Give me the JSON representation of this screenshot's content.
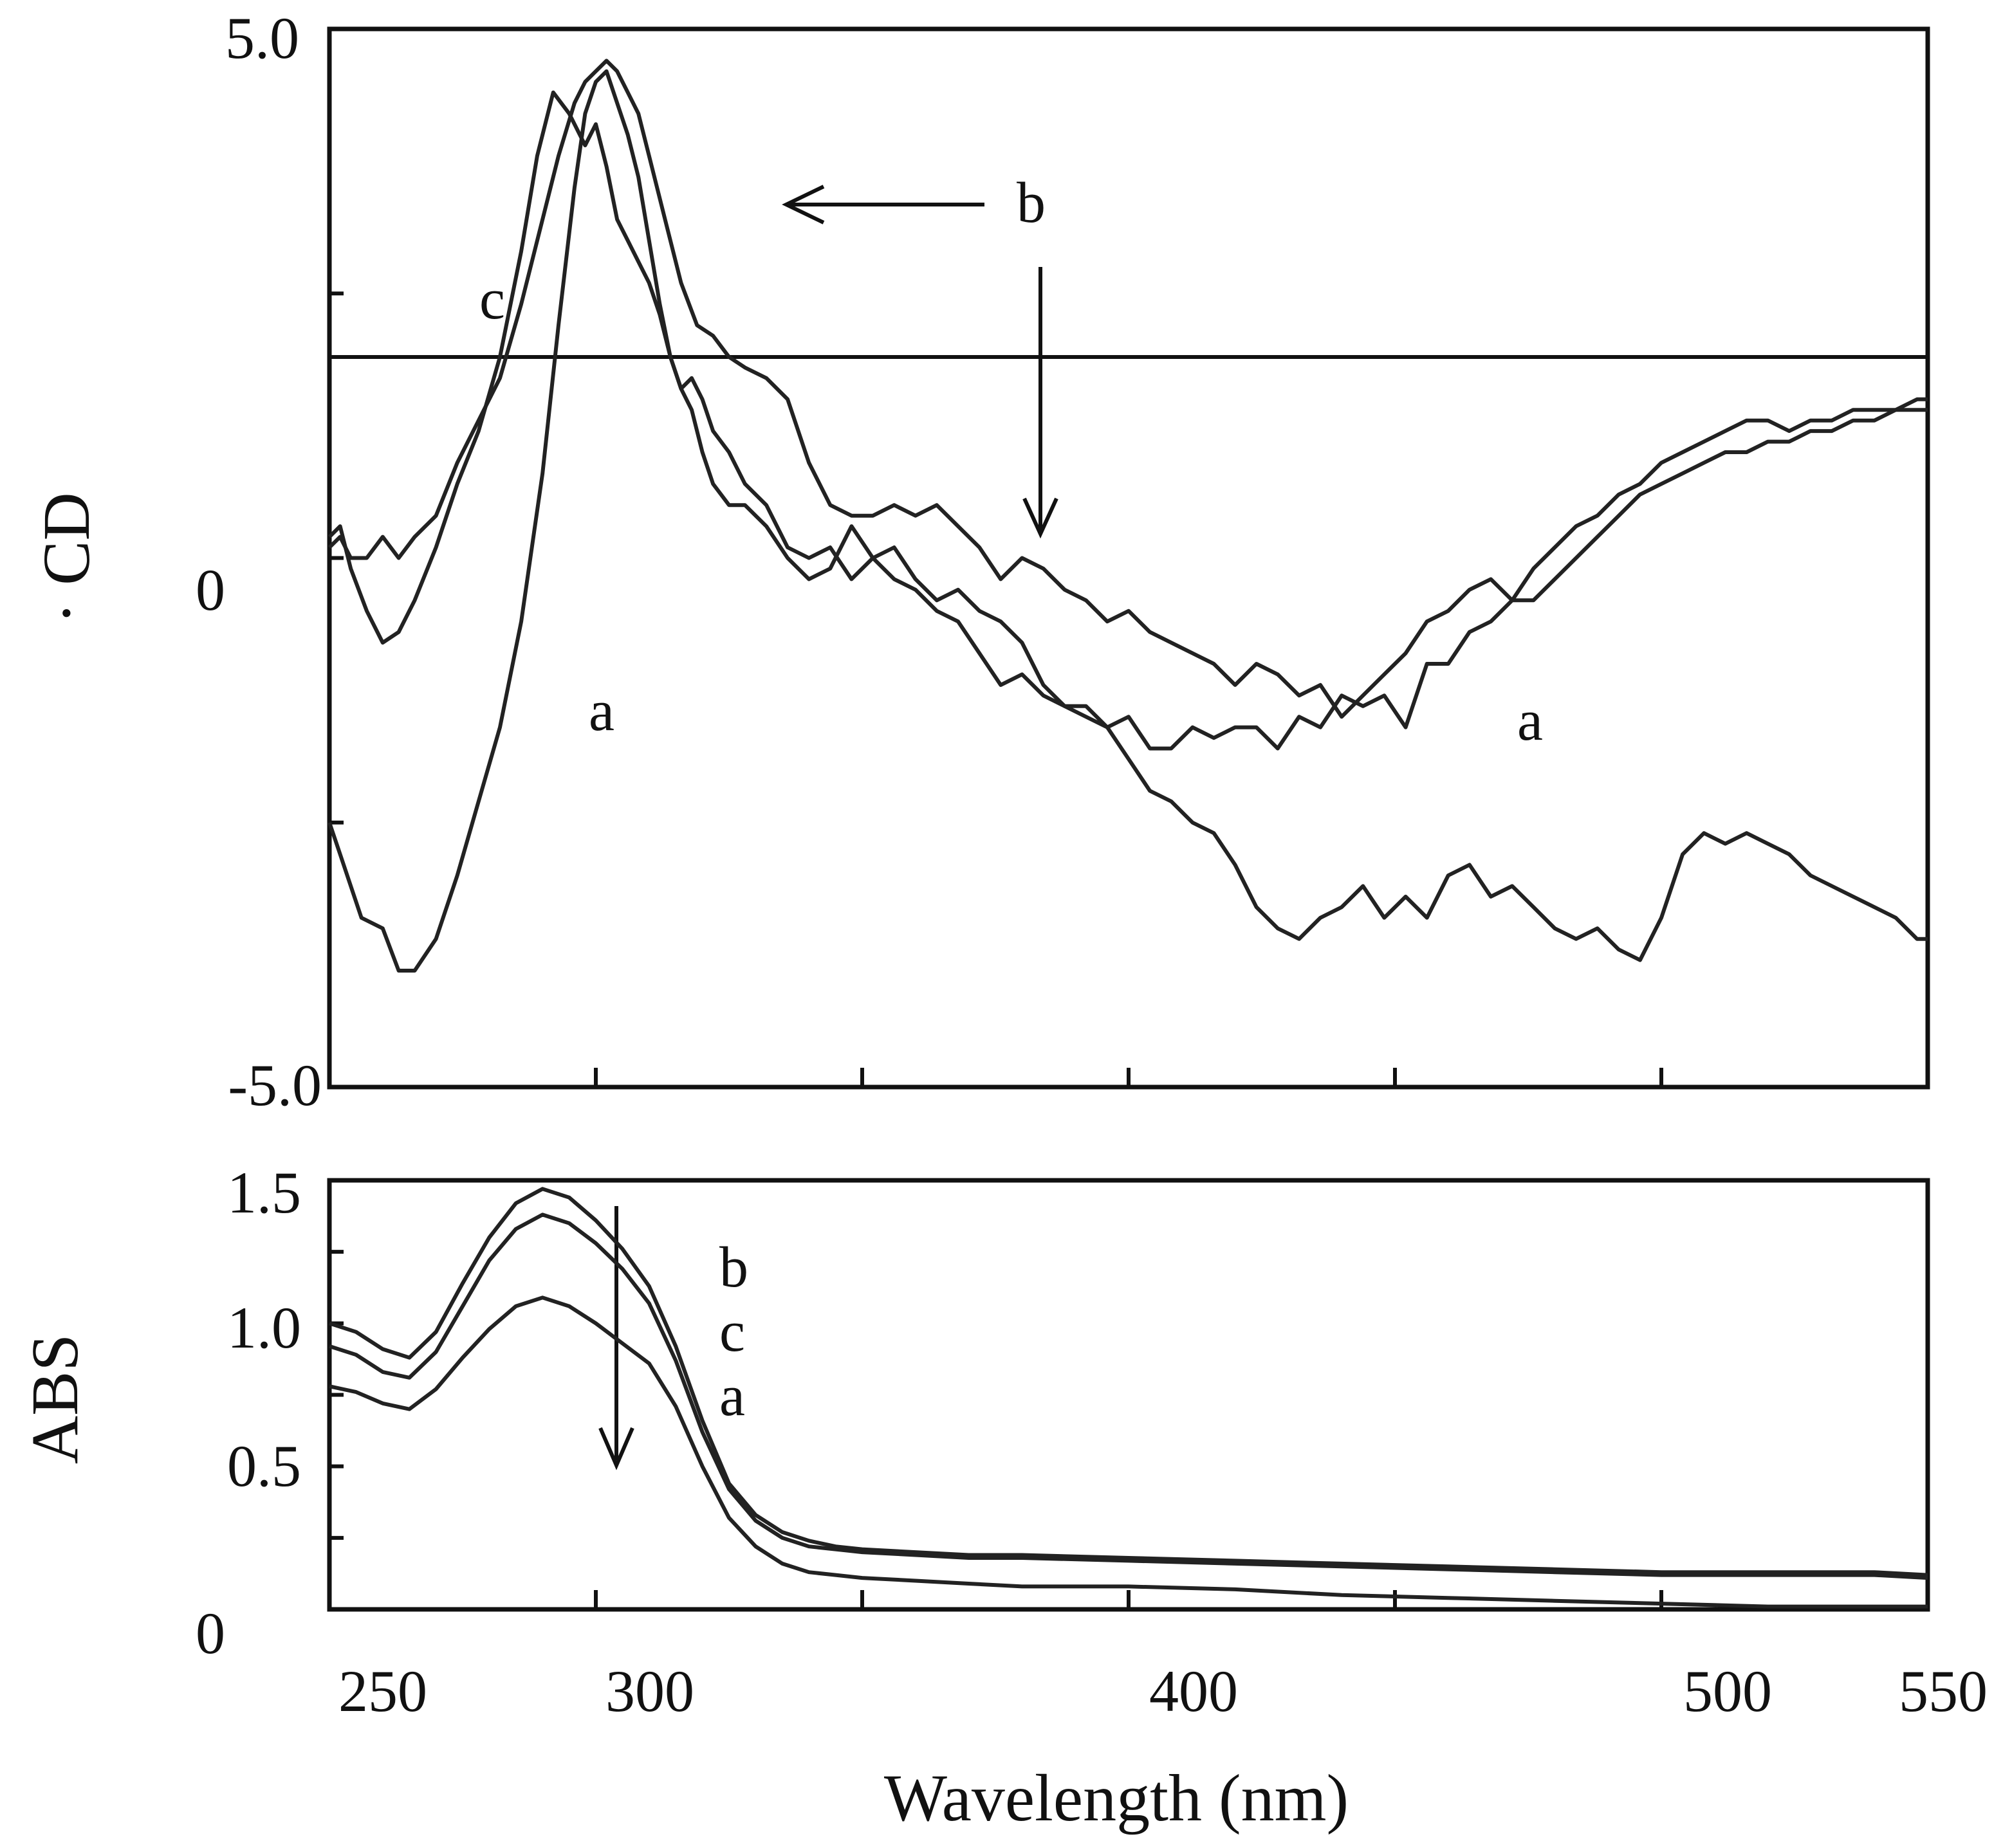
{
  "chart_data": [
    {
      "type": "line",
      "panel": "top",
      "ylabel": "· CD",
      "xlim": [
        250,
        550
      ],
      "ylim": [
        -5.0,
        5.0
      ],
      "ytick_labels": [
        "5.0",
        "0",
        "-5.0"
      ],
      "yticks": [
        5.0,
        0,
        -5.0
      ],
      "hline_y": 1.9,
      "series": [
        {
          "name": "a",
          "x": [
            250,
            252,
            256,
            260,
            263,
            266,
            270,
            274,
            278,
            282,
            286,
            290,
            293,
            296,
            298,
            300,
            302,
            304,
            306,
            308,
            310,
            312,
            314,
            316,
            318,
            320,
            322,
            325,
            328,
            332,
            336,
            340,
            344,
            348,
            352,
            356,
            360,
            364,
            368,
            372,
            376,
            380,
            384,
            388,
            392,
            396,
            400,
            404,
            408,
            412,
            416,
            420,
            424,
            428,
            432,
            436,
            440,
            444,
            448,
            452,
            456,
            460,
            464,
            468,
            472,
            476,
            480,
            484,
            488,
            492,
            496,
            500,
            504,
            508,
            512,
            516,
            520,
            524,
            528,
            532,
            536,
            540,
            544,
            548,
            550
          ],
          "y": [
            -2.5,
            -2.8,
            -3.4,
            -3.5,
            -3.9,
            -3.9,
            -3.6,
            -3.0,
            -2.3,
            -1.6,
            -0.6,
            0.8,
            2.2,
            3.5,
            4.2,
            4.5,
            4.6,
            4.3,
            4.0,
            3.6,
            3.0,
            2.4,
            1.9,
            1.6,
            1.7,
            1.5,
            1.2,
            1.0,
            0.7,
            0.5,
            0.1,
            0.0,
            0.1,
            -0.2,
            0.0,
            -0.2,
            -0.3,
            -0.5,
            -0.6,
            -0.9,
            -1.2,
            -1.1,
            -1.3,
            -1.4,
            -1.4,
            -1.6,
            -1.5,
            -1.8,
            -1.8,
            -1.6,
            -1.7,
            -1.6,
            -1.6,
            -1.8,
            -1.5,
            -1.6,
            -1.3,
            -1.4,
            -1.3,
            -1.6,
            -1.0,
            -1.0,
            -0.7,
            -0.6,
            -0.4,
            -0.4,
            -0.2,
            0.0,
            0.2,
            0.4,
            0.6,
            0.7,
            0.8,
            0.9,
            1.0,
            1.0,
            1.1,
            1.1,
            1.2,
            1.2,
            1.3,
            1.3,
            1.4,
            1.4,
            1.4
          ]
        },
        {
          "name": "b",
          "x": [
            250,
            252,
            254,
            257,
            260,
            263,
            266,
            270,
            274,
            278,
            282,
            286,
            290,
            293,
            296,
            298,
            300,
            302,
            304,
            306,
            308,
            310,
            313,
            316,
            319,
            322,
            325,
            328,
            332,
            336,
            340,
            344,
            348,
            352,
            356,
            360,
            364,
            368,
            372,
            376,
            380,
            384,
            388,
            392,
            396,
            400,
            404,
            408,
            412,
            416,
            420,
            424,
            428,
            432,
            436,
            440,
            444,
            448,
            452,
            456,
            460,
            464,
            468,
            472,
            476,
            480,
            484,
            488,
            492,
            496,
            500,
            504,
            508,
            512,
            516,
            520,
            524,
            528,
            532,
            536,
            540,
            544,
            548,
            550
          ],
          "y": [
            0.1,
            0.2,
            0.0,
            0.0,
            0.2,
            0.0,
            0.2,
            0.4,
            0.9,
            1.3,
            1.7,
            2.4,
            3.2,
            3.8,
            4.3,
            4.5,
            4.6,
            4.7,
            4.6,
            4.4,
            4.2,
            3.8,
            3.2,
            2.6,
            2.2,
            2.1,
            1.9,
            1.8,
            1.7,
            1.5,
            0.9,
            0.5,
            0.4,
            0.4,
            0.5,
            0.4,
            0.5,
            0.3,
            0.1,
            -0.2,
            0.0,
            -0.1,
            -0.3,
            -0.4,
            -0.6,
            -0.5,
            -0.7,
            -0.8,
            -0.9,
            -1.0,
            -1.2,
            -1.0,
            -1.1,
            -1.3,
            -1.2,
            -1.5,
            -1.3,
            -1.1,
            -0.9,
            -0.6,
            -0.5,
            -0.3,
            -0.2,
            -0.4,
            -0.1,
            0.1,
            0.3,
            0.4,
            0.6,
            0.7,
            0.9,
            1.0,
            1.1,
            1.2,
            1.3,
            1.3,
            1.2,
            1.3,
            1.3,
            1.4,
            1.4,
            1.4,
            1.5,
            1.5
          ]
        },
        {
          "name": "c",
          "x": [
            250,
            252,
            254,
            257,
            260,
            263,
            266,
            270,
            274,
            278,
            282,
            286,
            289,
            292,
            295,
            298,
            300,
            302,
            304,
            306,
            308,
            310,
            312,
            314,
            316,
            318,
            320,
            322,
            325,
            328,
            332,
            336,
            340,
            344,
            348,
            352,
            356,
            360,
            364,
            368,
            372,
            376,
            380,
            384,
            388,
            392,
            396,
            400,
            404,
            408,
            412,
            416,
            420,
            424,
            428,
            432,
            436,
            440,
            444,
            448,
            452,
            456,
            460,
            464,
            468,
            472,
            476,
            480,
            484,
            488,
            492,
            496,
            500,
            504,
            508,
            512,
            516,
            520,
            524,
            528,
            532,
            536,
            540,
            544,
            548,
            550
          ],
          "y": [
            0.2,
            0.3,
            -0.1,
            -0.5,
            -0.8,
            -0.7,
            -0.4,
            0.1,
            0.7,
            1.2,
            1.9,
            2.9,
            3.8,
            4.4,
            4.2,
            3.9,
            4.1,
            3.7,
            3.2,
            3.0,
            2.8,
            2.6,
            2.3,
            1.9,
            1.6,
            1.4,
            1.0,
            0.7,
            0.5,
            0.5,
            0.3,
            0.0,
            -0.2,
            -0.1,
            0.3,
            0.0,
            0.1,
            -0.2,
            -0.4,
            -0.3,
            -0.5,
            -0.6,
            -0.8,
            -1.2,
            -1.4,
            -1.5,
            -1.6,
            -1.9,
            -2.2,
            -2.3,
            -2.5,
            -2.6,
            -2.9,
            -3.3,
            -3.5,
            -3.6,
            -3.4,
            -3.3,
            -3.1,
            -3.4,
            -3.2,
            -3.4,
            -3.0,
            -2.9,
            -3.2,
            -3.1,
            -3.3,
            -3.5,
            -3.6,
            -3.5,
            -3.7,
            -3.8,
            -3.4,
            -2.8,
            -2.6,
            -2.7,
            -2.6,
            -2.7,
            -2.8,
            -3.0,
            -3.1,
            -3.2,
            -3.3,
            -3.4,
            -3.6,
            -3.6
          ]
        }
      ]
    },
    {
      "type": "line",
      "panel": "bottom",
      "ylabel": "ABS",
      "xlabel": "Wavelength (nm)",
      "xlim": [
        250,
        550
      ],
      "ylim": [
        0,
        1.5
      ],
      "ytick_labels": [
        "1.5",
        "1.0",
        "0.5",
        "0"
      ],
      "yticks": [
        1.5,
        1.0,
        0.5,
        0
      ],
      "xtick_labels": [
        "250",
        "300",
        "400",
        "500",
        "550"
      ],
      "xticks": [
        250,
        300,
        400,
        500,
        550
      ],
      "series": [
        {
          "name": "b",
          "x": [
            250,
            255,
            260,
            265,
            270,
            275,
            280,
            285,
            290,
            295,
            300,
            305,
            310,
            315,
            320,
            325,
            330,
            335,
            340,
            345,
            350,
            360,
            370,
            380,
            400,
            420,
            440,
            460,
            480,
            500,
            520,
            540,
            550
          ],
          "y": [
            1.0,
            0.97,
            0.91,
            0.88,
            0.97,
            1.14,
            1.3,
            1.42,
            1.47,
            1.44,
            1.36,
            1.26,
            1.13,
            0.92,
            0.66,
            0.44,
            0.33,
            0.27,
            0.24,
            0.22,
            0.21,
            0.2,
            0.19,
            0.19,
            0.18,
            0.17,
            0.16,
            0.15,
            0.14,
            0.13,
            0.13,
            0.13,
            0.12
          ]
        },
        {
          "name": "c",
          "x": [
            250,
            255,
            260,
            265,
            270,
            275,
            280,
            285,
            290,
            295,
            300,
            305,
            310,
            315,
            320,
            325,
            330,
            335,
            340,
            345,
            350,
            360,
            370,
            380,
            400,
            420,
            440,
            460,
            480,
            500,
            520,
            540,
            550
          ],
          "y": [
            0.92,
            0.89,
            0.83,
            0.81,
            0.9,
            1.06,
            1.22,
            1.33,
            1.38,
            1.35,
            1.28,
            1.19,
            1.07,
            0.87,
            0.62,
            0.42,
            0.31,
            0.25,
            0.22,
            0.21,
            0.2,
            0.19,
            0.18,
            0.18,
            0.17,
            0.16,
            0.15,
            0.14,
            0.13,
            0.12,
            0.12,
            0.12,
            0.11
          ]
        },
        {
          "name": "a",
          "x": [
            250,
            255,
            260,
            265,
            270,
            275,
            280,
            285,
            290,
            295,
            300,
            305,
            310,
            315,
            320,
            325,
            330,
            335,
            340,
            345,
            350,
            360,
            370,
            380,
            400,
            420,
            440,
            460,
            480,
            500,
            520,
            540,
            550
          ],
          "y": [
            0.78,
            0.76,
            0.72,
            0.7,
            0.77,
            0.88,
            0.98,
            1.06,
            1.09,
            1.06,
            1.0,
            0.93,
            0.86,
            0.71,
            0.5,
            0.32,
            0.22,
            0.16,
            0.13,
            0.12,
            0.11,
            0.1,
            0.09,
            0.08,
            0.08,
            0.07,
            0.05,
            0.04,
            0.03,
            0.02,
            0.01,
            0.01,
            0.01
          ]
        }
      ]
    }
  ],
  "annotations": {
    "top": {
      "label_b": "b",
      "label_c": "c",
      "label_a_left": "a",
      "label_a_right": "a"
    },
    "bottom": {
      "label_b": "b",
      "label_c": "c",
      "label_a": "a"
    }
  }
}
